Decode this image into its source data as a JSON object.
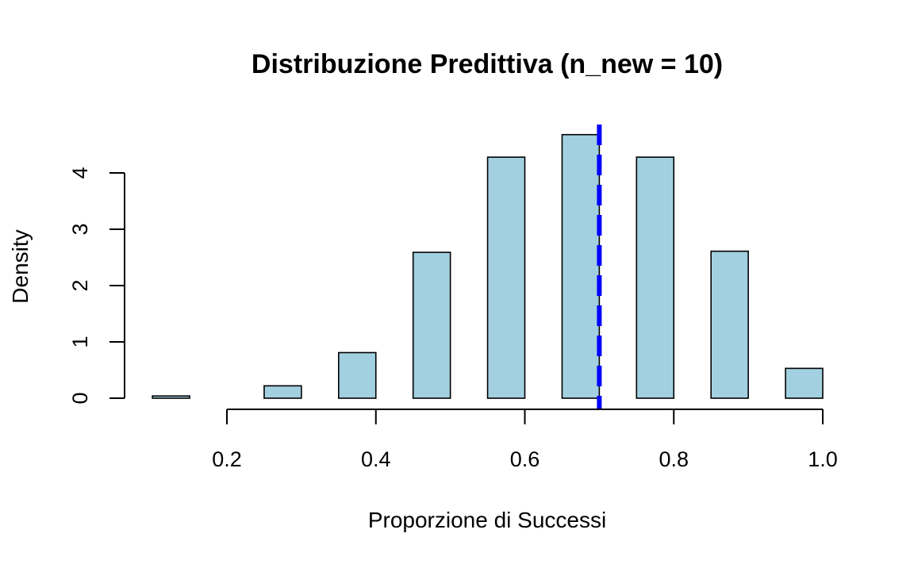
{
  "chart_data": {
    "type": "bar",
    "title": "Distribuzione Predittiva (n_new = 10)",
    "xlabel": "Proporzione di Successi",
    "ylabel": "Density",
    "xlim": [
      0.1,
      1.0
    ],
    "ylim": [
      0,
      4.8
    ],
    "x_ticks": [
      0.2,
      0.4,
      0.6,
      0.8,
      1.0
    ],
    "x_tick_labels": [
      "0.2",
      "0.4",
      "0.6",
      "0.8",
      "1.0"
    ],
    "y_ticks": [
      0,
      1,
      2,
      3,
      4
    ],
    "y_tick_labels": [
      "0",
      "1",
      "2",
      "3",
      "4"
    ],
    "bin_width": 0.05,
    "bins": [
      {
        "start": 0.1,
        "end": 0.15,
        "density": 0.04
      },
      {
        "start": 0.25,
        "end": 0.3,
        "density": 0.22
      },
      {
        "start": 0.35,
        "end": 0.4,
        "density": 0.81
      },
      {
        "start": 0.45,
        "end": 0.5,
        "density": 2.59
      },
      {
        "start": 0.55,
        "end": 0.6,
        "density": 4.28
      },
      {
        "start": 0.65,
        "end": 0.7,
        "density": 4.68
      },
      {
        "start": 0.75,
        "end": 0.8,
        "density": 4.28
      },
      {
        "start": 0.85,
        "end": 0.9,
        "density": 2.61
      },
      {
        "start": 0.95,
        "end": 1.0,
        "density": 0.53
      }
    ],
    "bar_color": "#a2d0e0",
    "reference_line": {
      "x": 0.7,
      "color": "#0000ff",
      "style": "dashed"
    },
    "grid": false,
    "legend": "none"
  }
}
